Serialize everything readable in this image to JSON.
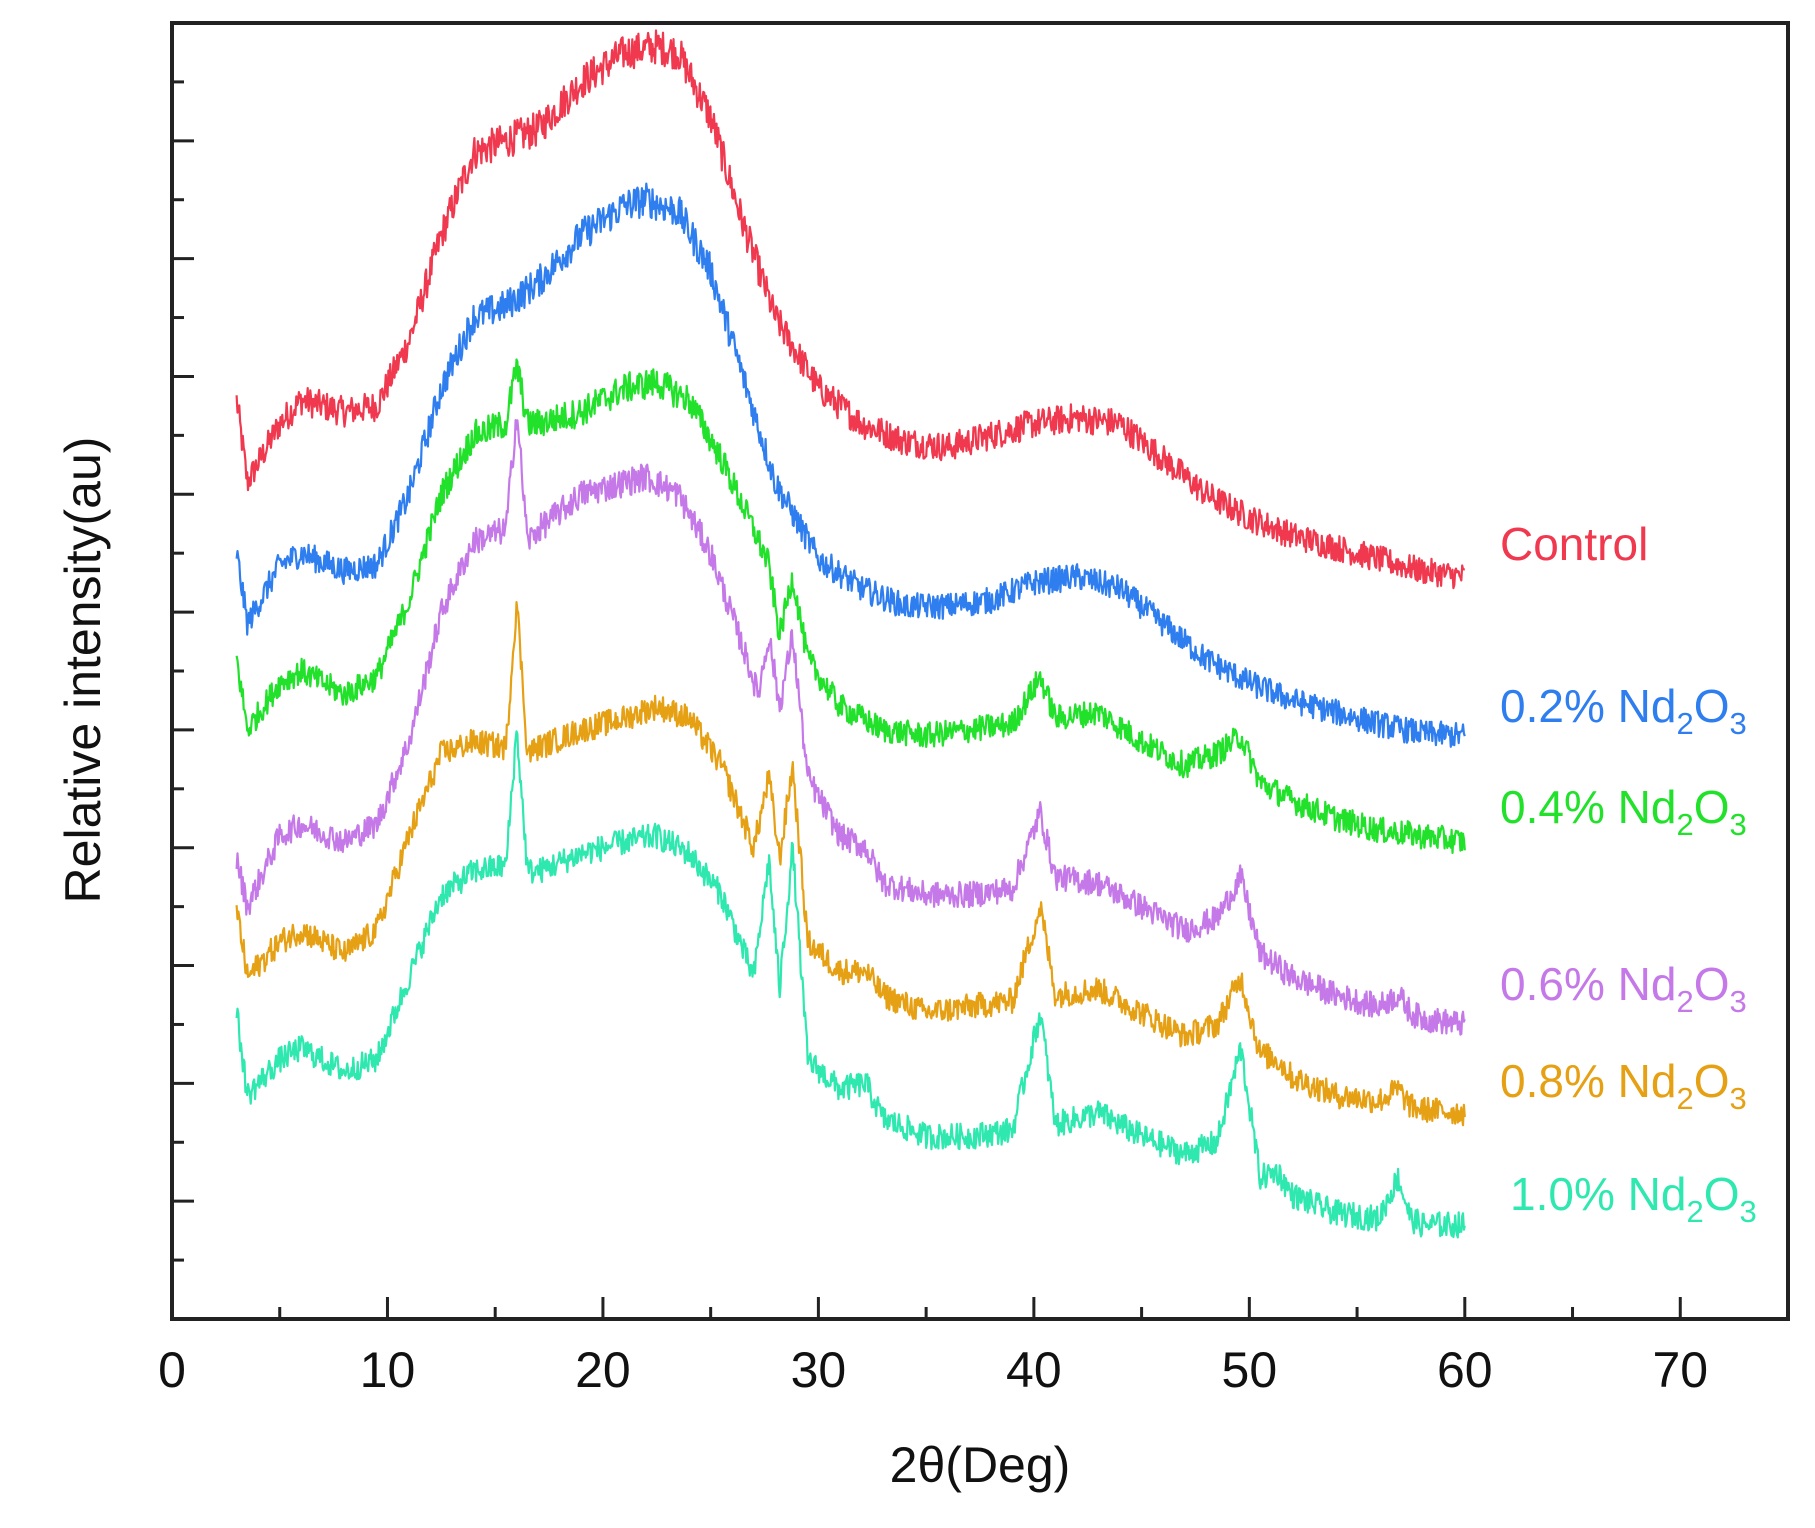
{
  "chart_data": {
    "type": "line",
    "title": "",
    "xlabel": "2θ(Deg)",
    "ylabel": "Relative intensity(au)",
    "xlim": [
      0,
      75
    ],
    "ylim": [
      0,
      11
    ],
    "x_ticks": [
      0,
      10,
      20,
      30,
      40,
      50,
      60,
      70
    ],
    "x_tick_labels": [
      "0",
      "10",
      "20",
      "30",
      "40",
      "50",
      "60",
      "70"
    ],
    "y_tick_labels_shown": false,
    "grid": false,
    "legend_placement": "right, labels next to curve ends",
    "series": [
      {
        "name": "Control",
        "label_main": "Control",
        "label_sub": "",
        "label_tail": "",
        "color": "#f0384e",
        "x": [
          3,
          3.5,
          5,
          6,
          8,
          9.5,
          11,
          12.5,
          14,
          15.5,
          17,
          19,
          21,
          22.5,
          23.5,
          25,
          26.5,
          28,
          30,
          32,
          34,
          36,
          38,
          40,
          42,
          44,
          46,
          48,
          50,
          52,
          54,
          56,
          58,
          60
        ],
        "y": [
          7.8,
          7.1,
          7.6,
          7.8,
          7.7,
          7.75,
          8.3,
          9.2,
          9.9,
          10.0,
          10.1,
          10.5,
          10.75,
          10.8,
          10.75,
          10.2,
          9.3,
          8.5,
          7.9,
          7.6,
          7.45,
          7.4,
          7.5,
          7.6,
          7.65,
          7.6,
          7.3,
          7.0,
          6.8,
          6.65,
          6.55,
          6.45,
          6.35,
          6.3
        ]
      },
      {
        "name": "0.2% Nd2O3",
        "label_main": "0.2% Nd",
        "label_sub": "2",
        "label_tail": "O",
        "label_sub2": "3",
        "color": "#2f7ef0",
        "x": [
          3,
          3.5,
          5,
          6,
          8,
          9.5,
          11,
          12.5,
          14,
          15.5,
          17,
          19,
          21,
          22,
          23.5,
          25,
          26.5,
          28,
          30,
          32,
          34,
          36,
          38,
          40,
          42,
          44,
          46,
          48,
          50,
          52,
          54,
          56,
          58,
          60
        ],
        "y": [
          6.5,
          5.9,
          6.4,
          6.5,
          6.35,
          6.4,
          7.0,
          7.9,
          8.5,
          8.6,
          8.8,
          9.2,
          9.45,
          9.5,
          9.4,
          8.9,
          8.0,
          7.1,
          6.45,
          6.2,
          6.05,
          6.05,
          6.1,
          6.25,
          6.3,
          6.2,
          5.9,
          5.6,
          5.4,
          5.25,
          5.15,
          5.05,
          4.97,
          4.95
        ]
      },
      {
        "name": "0.4% Nd2O3",
        "label_main": "0.4% Nd",
        "label_sub": "2",
        "label_tail": "O",
        "label_sub2": "3",
        "color": "#21e12b",
        "x": [
          3,
          3.5,
          5,
          6,
          8,
          9.5,
          11,
          12.5,
          14,
          15.5,
          16,
          16.5,
          17,
          19,
          21,
          22.5,
          24,
          25.5,
          27,
          27.7,
          28.2,
          28.8,
          29.5,
          31,
          33,
          35,
          37,
          39,
          40.3,
          41,
          43,
          45,
          47,
          48.5,
          49.6,
          50.5,
          52,
          54,
          56,
          58,
          60
        ],
        "y": [
          5.6,
          5.0,
          5.4,
          5.5,
          5.3,
          5.45,
          6.1,
          7.0,
          7.5,
          7.6,
          8.1,
          7.6,
          7.6,
          7.7,
          7.9,
          7.95,
          7.8,
          7.3,
          6.7,
          6.4,
          5.8,
          6.3,
          5.6,
          5.2,
          5.0,
          4.95,
          5.0,
          5.05,
          5.45,
          5.1,
          5.15,
          4.9,
          4.7,
          4.8,
          4.95,
          4.55,
          4.4,
          4.25,
          4.15,
          4.1,
          4.05
        ]
      },
      {
        "name": "0.6% Nd2O3",
        "label_main": "0.6% Nd",
        "label_sub": "2",
        "label_tail": "O",
        "label_sub2": "3",
        "color": "#c579e9",
        "x": [
          3,
          3.5,
          5,
          6,
          8,
          9.5,
          11,
          12.5,
          14,
          15.5,
          16,
          16.5,
          17,
          19,
          21,
          22,
          23.5,
          25,
          26.5,
          27.2,
          27.7,
          28.2,
          28.8,
          29.5,
          31,
          32.2,
          33,
          35,
          37,
          39,
          40.3,
          41,
          43,
          45,
          47,
          48.5,
          49.6,
          50.5,
          52,
          54,
          56,
          56.9,
          57.5,
          58,
          60
        ],
        "y": [
          3.9,
          3.5,
          4.1,
          4.2,
          4.05,
          4.2,
          4.9,
          6.0,
          6.6,
          6.7,
          7.7,
          6.6,
          6.7,
          7.0,
          7.1,
          7.15,
          7.0,
          6.5,
          5.7,
          5.3,
          5.8,
          5.2,
          5.8,
          4.6,
          4.1,
          4.0,
          3.7,
          3.6,
          3.6,
          3.65,
          4.3,
          3.75,
          3.7,
          3.5,
          3.3,
          3.4,
          3.75,
          3.1,
          2.9,
          2.75,
          2.65,
          2.75,
          2.6,
          2.55,
          2.5
        ]
      },
      {
        "name": "0.8% Nd2O3",
        "label_main": "0.8% Nd",
        "label_sub": "2",
        "label_tail": "O",
        "label_sub2": "3",
        "color": "#e6a014",
        "x": [
          3,
          3.5,
          5,
          6,
          8,
          9.5,
          11,
          12.5,
          14,
          15.5,
          16,
          16.5,
          17,
          19,
          21,
          22.5,
          24,
          25.5,
          27,
          27.7,
          28.2,
          28.8,
          29.5,
          31,
          32.2,
          33,
          35,
          37,
          39,
          40.3,
          41,
          43,
          45,
          47,
          48.5,
          49.6,
          50.5,
          51.3,
          52,
          54,
          56,
          56.9,
          57.5,
          58,
          60
        ],
        "y": [
          3.5,
          2.9,
          3.2,
          3.3,
          3.1,
          3.3,
          4.1,
          4.8,
          4.9,
          4.85,
          6.1,
          4.8,
          4.85,
          5.0,
          5.1,
          5.2,
          5.1,
          4.7,
          4.0,
          4.6,
          3.9,
          4.7,
          3.2,
          2.95,
          2.95,
          2.75,
          2.6,
          2.65,
          2.7,
          3.5,
          2.75,
          2.8,
          2.6,
          2.4,
          2.5,
          2.9,
          2.25,
          2.2,
          2.05,
          1.9,
          1.85,
          1.95,
          1.8,
          1.78,
          1.75
        ]
      },
      {
        "name": "1.0% Nd2O3",
        "label_main": "1.0% Nd",
        "label_sub": "2",
        "label_tail": "O",
        "label_sub2": "3",
        "color": "#2ee8b0",
        "x": [
          3,
          3.5,
          5,
          6,
          8,
          9.5,
          11,
          12.5,
          14,
          15.5,
          16,
          16.5,
          17,
          19,
          21,
          22.5,
          24,
          25.5,
          27,
          27.7,
          28.2,
          28.8,
          29.5,
          31,
          32.2,
          33,
          35,
          37,
          39,
          40.3,
          41,
          43,
          45,
          47,
          48.5,
          49.6,
          50.5,
          51.3,
          52,
          54,
          56,
          56.9,
          57.5,
          58,
          60
        ],
        "y": [
          2.6,
          1.9,
          2.2,
          2.3,
          2.1,
          2.2,
          2.9,
          3.6,
          3.8,
          3.85,
          5.0,
          3.8,
          3.8,
          3.95,
          4.05,
          4.1,
          3.95,
          3.6,
          2.9,
          3.9,
          2.8,
          4.0,
          2.2,
          1.95,
          2.0,
          1.7,
          1.55,
          1.55,
          1.6,
          2.6,
          1.65,
          1.75,
          1.55,
          1.4,
          1.5,
          2.3,
          1.2,
          1.25,
          1.05,
          0.9,
          0.85,
          1.2,
          0.85,
          0.8,
          0.8
        ]
      }
    ]
  }
}
